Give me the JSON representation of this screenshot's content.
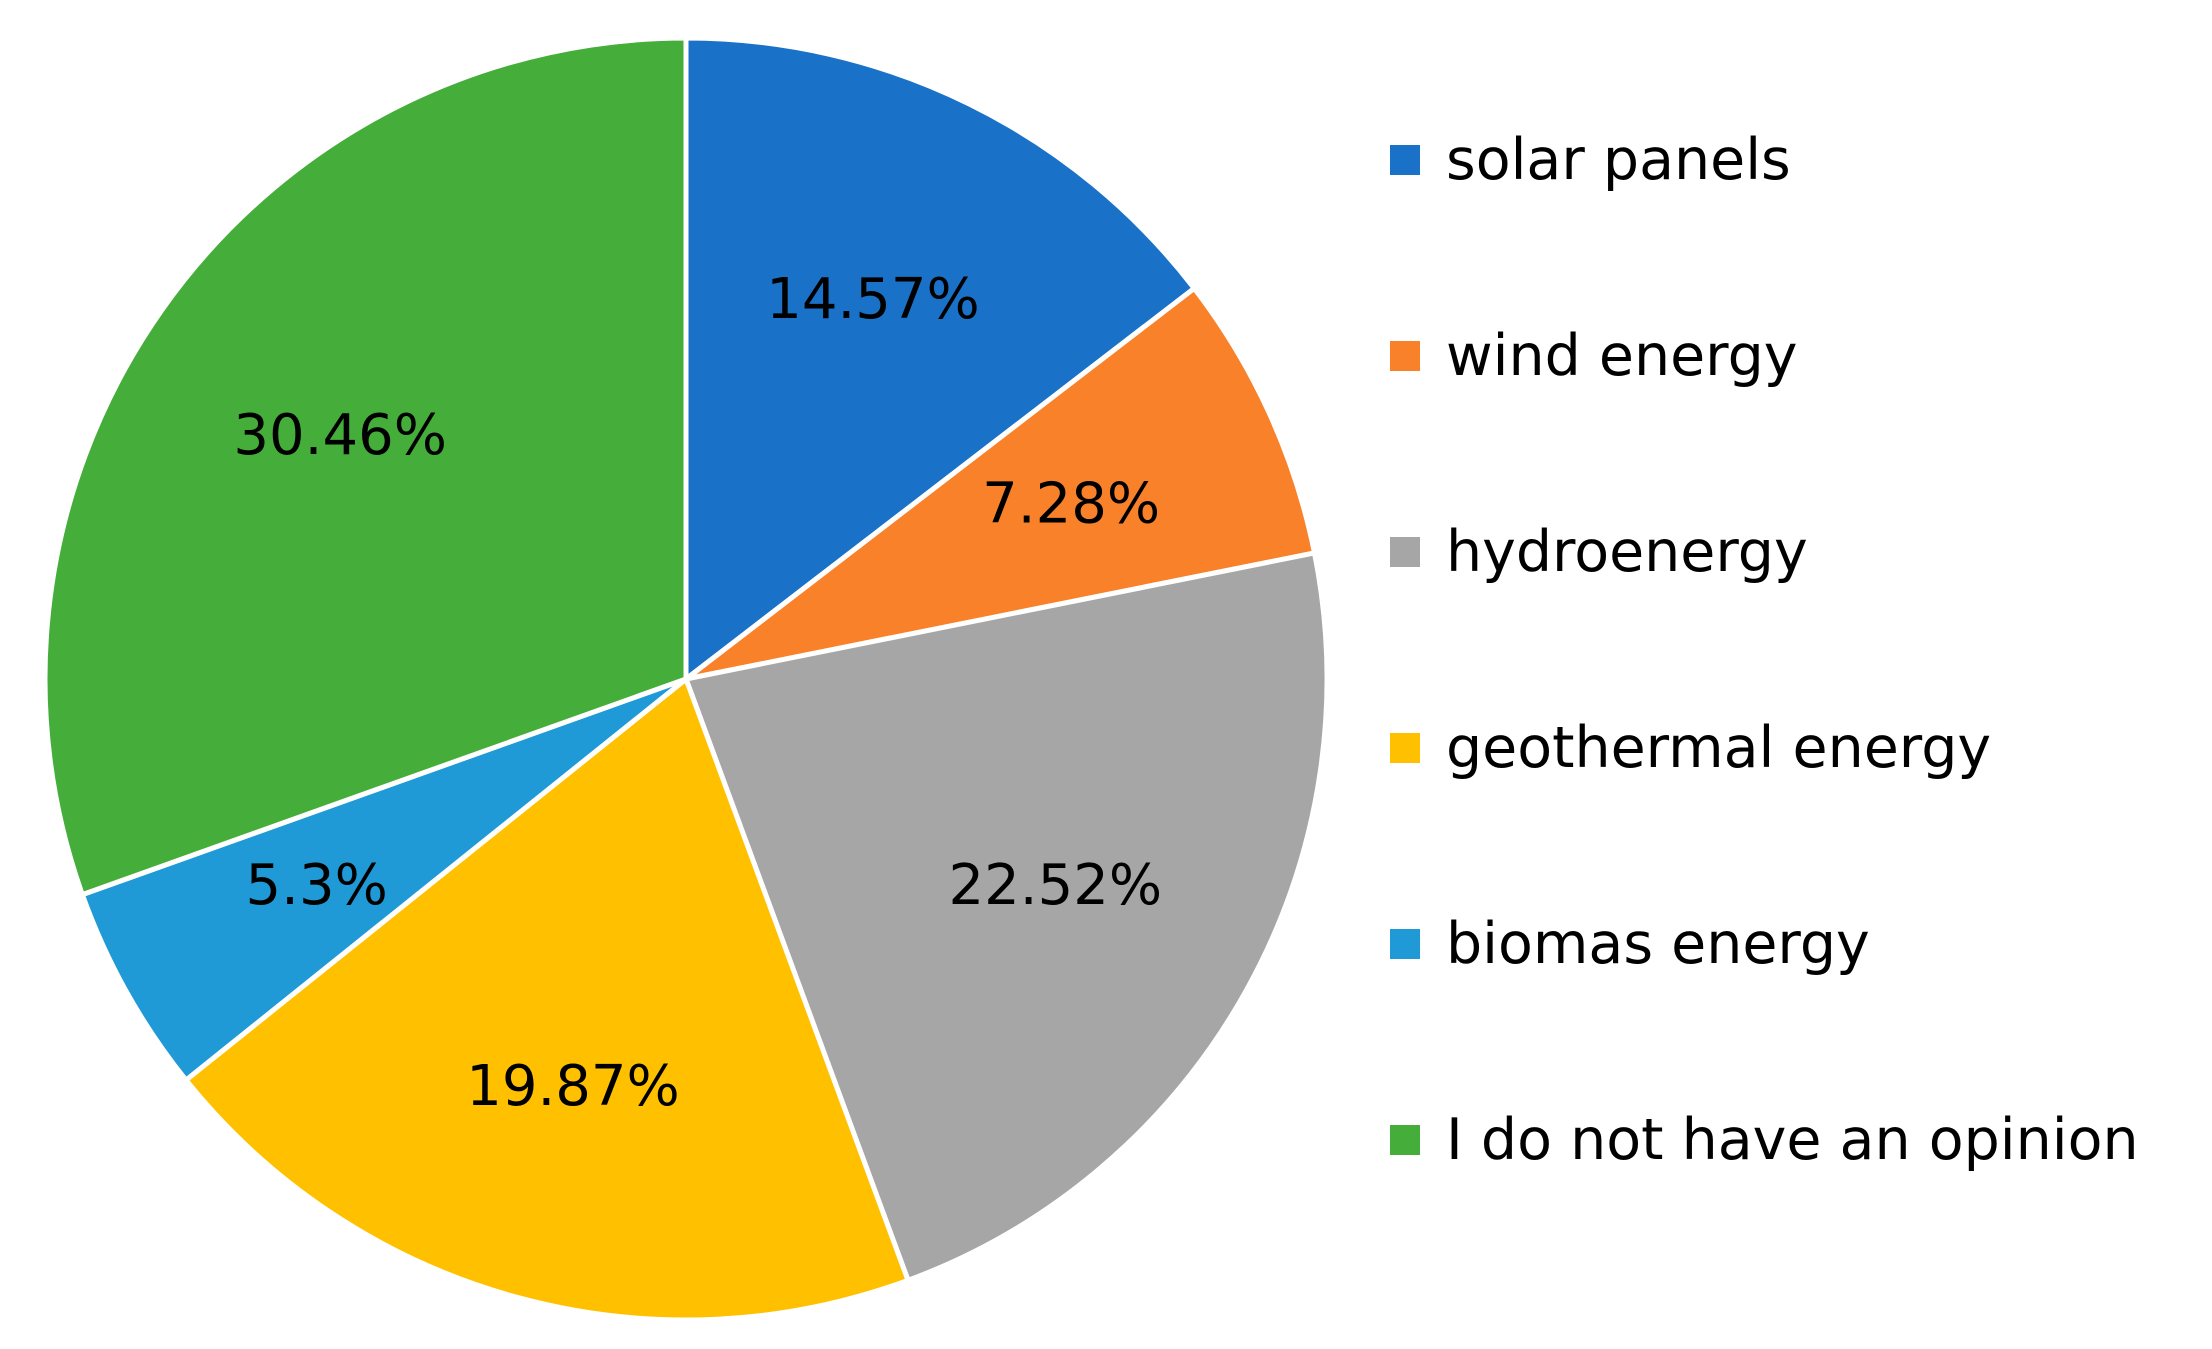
{
  "chart_data": {
    "type": "pie",
    "title": "",
    "legend_position": "right",
    "slices": [
      {
        "name": "solar panels",
        "value": 14.57,
        "label": "14.57%",
        "color": "#1A71C8"
      },
      {
        "name": "wind energy",
        "value": 7.28,
        "label": "7.28%",
        "color": "#F8812A"
      },
      {
        "name": "hydroenergy",
        "value": 22.52,
        "label": "22.52%",
        "color": "#A6A6A6"
      },
      {
        "name": "geothermal energy",
        "value": 19.87,
        "label": "19.87%",
        "color": "#FFC000"
      },
      {
        "name": "biomas energy",
        "value": 5.3,
        "label": "5.3%",
        "color": "#1F9AD6"
      },
      {
        "name": "I do not have an opinion",
        "value": 30.46,
        "label": "30.46%",
        "color": "#45AD3A"
      }
    ]
  }
}
